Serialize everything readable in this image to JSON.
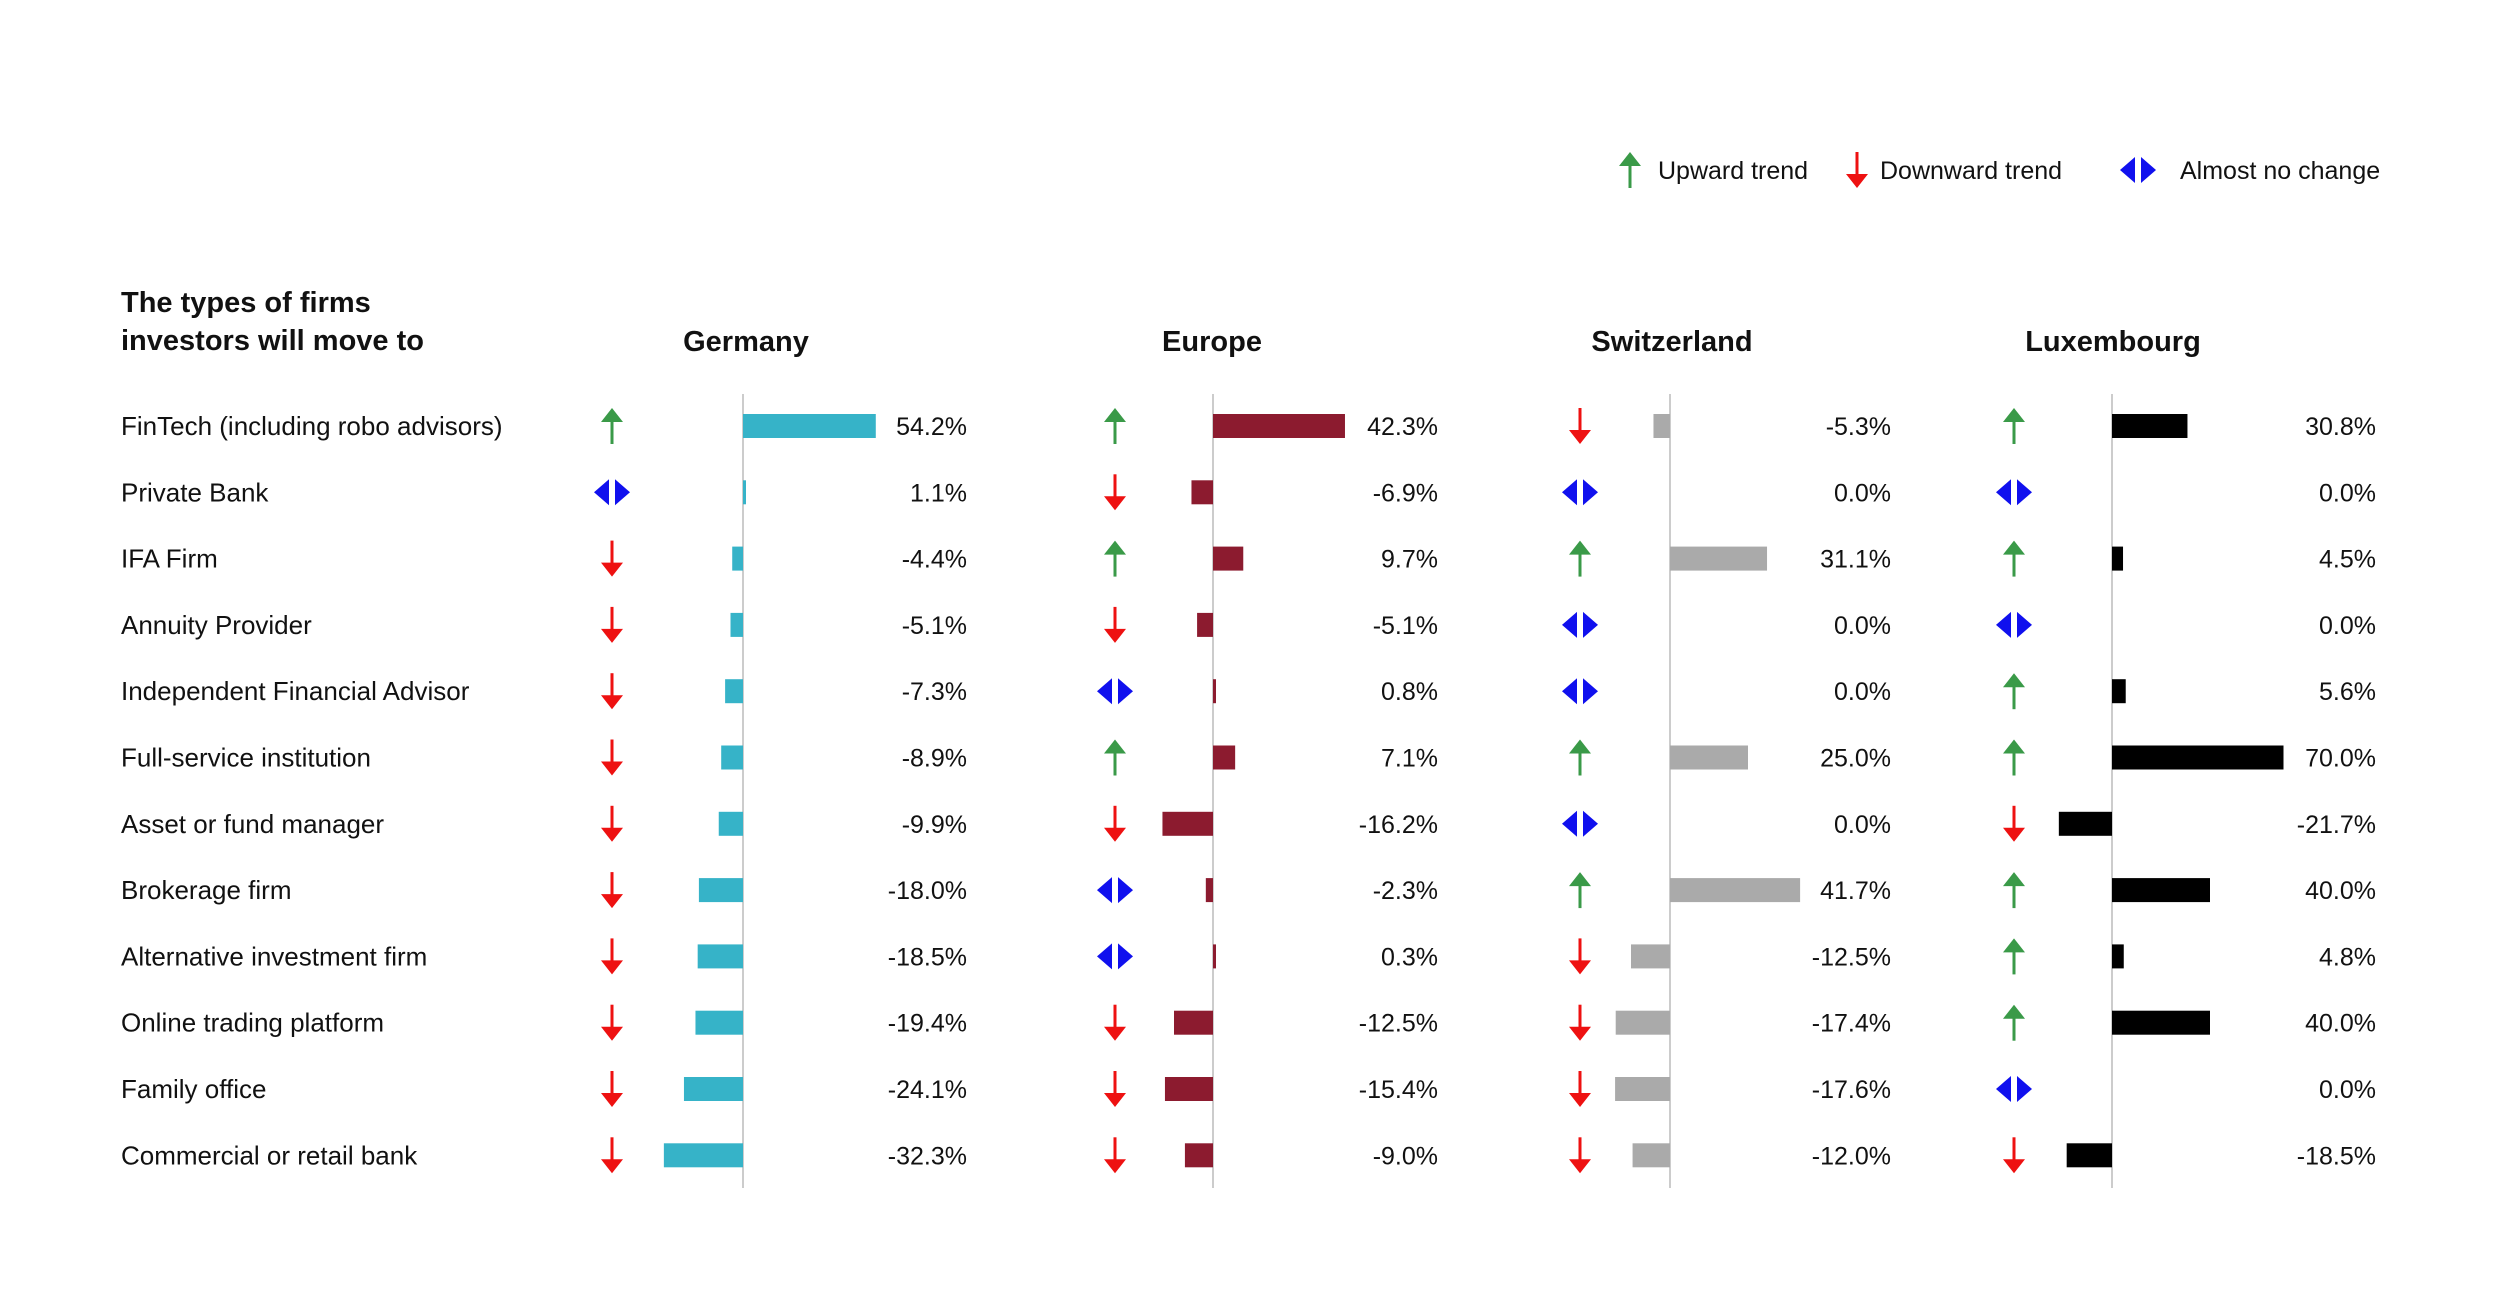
{
  "chart_data": {
    "type": "bar",
    "title_lines": [
      "The types of firms",
      "investors will move to"
    ],
    "legend": [
      {
        "trend": "up",
        "label": "Upward trend",
        "icon": "up-arrow-icon"
      },
      {
        "trend": "down",
        "label": "Downward trend",
        "icon": "down-arrow-icon"
      },
      {
        "trend": "flat",
        "label": "Almost no change",
        "icon": "double-arrow-icon"
      }
    ],
    "trend_colors": {
      "up": "#3a9a48",
      "down": "#ee1111",
      "flat": "#1010ee"
    },
    "categories": [
      "FinTech (including robo advisors)",
      "Private Bank",
      "IFA Firm",
      "Annuity Provider",
      "Independent Financial Advisor",
      "Full-service institution",
      "Asset or fund manager",
      "Brokerage firm",
      "Alternative investment firm",
      "Online trading platform",
      "Family office",
      "Commercial or retail bank"
    ],
    "series": [
      {
        "name": "Germany",
        "color": "#36b3c8",
        "values": [
          54.2,
          1.1,
          -4.4,
          -5.1,
          -7.3,
          -8.9,
          -9.9,
          -18.0,
          -18.5,
          -19.4,
          -24.1,
          -32.3
        ],
        "labels": [
          "54.2%",
          "1.1%",
          "-4.4%",
          "-5.1%",
          "-7.3%",
          "-8.9%",
          "-9.9%",
          "-18.0%",
          "-18.5%",
          "-19.4%",
          "-24.1%",
          "-32.3%"
        ],
        "trends": [
          "up",
          "flat",
          "down",
          "down",
          "down",
          "down",
          "down",
          "down",
          "down",
          "down",
          "down",
          "down"
        ]
      },
      {
        "name": "Europe",
        "color": "#8c1b2f",
        "values": [
          42.3,
          -6.9,
          9.7,
          -5.1,
          0.8,
          7.1,
          -16.2,
          -2.3,
          0.3,
          -12.5,
          -15.4,
          -9.0
        ],
        "labels": [
          "42.3%",
          "-6.9%",
          "9.7%",
          "-5.1%",
          "0.8%",
          "7.1%",
          "-16.2%",
          "-2.3%",
          "0.3%",
          "-12.5%",
          "-15.4%",
          "-9.0%"
        ],
        "trends": [
          "up",
          "down",
          "up",
          "down",
          "flat",
          "up",
          "down",
          "flat",
          "flat",
          "down",
          "down",
          "down"
        ]
      },
      {
        "name": "Switzerland",
        "color": "#aaaaaa",
        "values": [
          -5.3,
          0.0,
          31.1,
          0.0,
          0.0,
          25.0,
          0.0,
          41.7,
          -12.5,
          -17.4,
          -17.6,
          -12.0
        ],
        "labels": [
          "-5.3%",
          "0.0%",
          "31.1%",
          "0.0%",
          "0.0%",
          "25.0%",
          "0.0%",
          "41.7%",
          "-12.5%",
          "-17.4%",
          "-17.6%",
          "-12.0%"
        ],
        "trends": [
          "down",
          "flat",
          "up",
          "flat",
          "flat",
          "up",
          "flat",
          "up",
          "down",
          "down",
          "down",
          "down"
        ]
      },
      {
        "name": "Luxembourg",
        "color": "#000000",
        "values": [
          30.8,
          0.0,
          4.5,
          0.0,
          5.6,
          70.0,
          -21.7,
          40.0,
          4.8,
          40.0,
          0.0,
          -18.5
        ],
        "labels": [
          "30.8%",
          "0.0%",
          "4.5%",
          "0.0%",
          "5.6%",
          "70.0%",
          "-21.7%",
          "40.0%",
          "4.8%",
          "40.0%",
          "0.0%",
          "-18.5%"
        ],
        "trends": [
          "up",
          "flat",
          "up",
          "flat",
          "up",
          "up",
          "down",
          "up",
          "up",
          "up",
          "flat",
          "down"
        ]
      }
    ],
    "axis_color": "#cccccc"
  }
}
